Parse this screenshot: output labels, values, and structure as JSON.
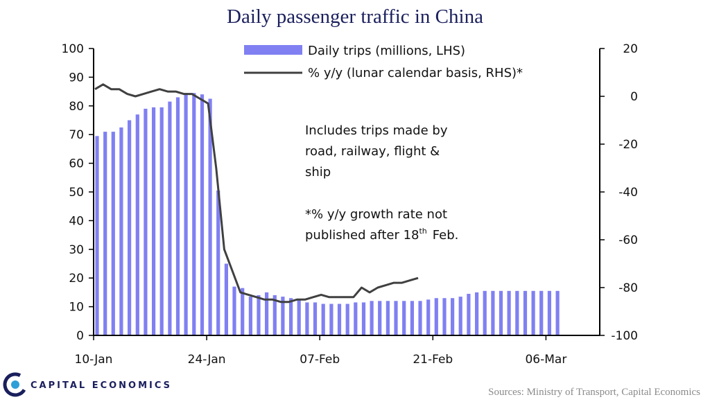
{
  "chart_data": {
    "type": "bar",
    "title": "Daily passenger traffic in China",
    "x_tick_labels": [
      "10-Jan",
      "24-Jan",
      "07-Feb",
      "21-Feb",
      "06-Mar"
    ],
    "y_left": {
      "ylim": [
        0,
        100
      ],
      "ticks": [
        "0",
        "10",
        "20",
        "30",
        "40",
        "50",
        "60",
        "70",
        "80",
        "90",
        "100"
      ]
    },
    "y_right": {
      "ylim": [
        -100,
        20
      ],
      "ticks": [
        "20",
        "0",
        "-20",
        "-40",
        "-60",
        "-80",
        "-100"
      ]
    },
    "grid": false,
    "legend_placement": "top-center",
    "series": [
      {
        "name": "Daily trips (millions, LHS)",
        "kind": "bar",
        "axis": "left",
        "color": "#8080f2",
        "x_day": [
          0,
          1,
          2,
          3,
          4,
          5,
          6,
          7,
          8,
          9,
          10,
          11,
          12,
          13,
          14,
          15,
          16,
          17,
          18,
          19,
          20,
          21,
          22,
          23,
          24,
          25,
          26,
          27,
          28,
          29,
          30,
          31,
          32,
          33,
          34,
          35,
          36,
          37,
          38,
          39,
          40,
          41,
          42,
          43,
          44,
          45,
          46,
          47,
          48,
          49,
          50,
          51,
          52,
          53,
          54,
          55,
          56,
          57
        ],
        "values": [
          69.5,
          71.0,
          71.0,
          72.5,
          75.0,
          77.0,
          79.0,
          79.5,
          79.5,
          81.5,
          83.0,
          84.5,
          84.5,
          84.0,
          82.5,
          50.5,
          25.0,
          17.0,
          16.5,
          13.5,
          14.0,
          15.0,
          14.0,
          13.5,
          13.0,
          12.5,
          11.5,
          11.5,
          11.0,
          11.0,
          11.0,
          11.0,
          11.5,
          11.5,
          12.0,
          12.0,
          12.0,
          12.0,
          12.0,
          12.0,
          12.0,
          12.5,
          13.0,
          13.0,
          13.0,
          13.5,
          14.5,
          15.0,
          15.5,
          15.5,
          15.5,
          15.5,
          15.5,
          15.5,
          15.5,
          15.5,
          15.5,
          15.5
        ]
      },
      {
        "name": "% y/y (lunar calendar basis, RHS)*",
        "kind": "line",
        "axis": "right",
        "color": "#404040",
        "x_day": [
          0,
          1,
          2,
          3,
          4,
          5,
          6,
          7,
          8,
          9,
          10,
          11,
          12,
          13,
          14,
          15,
          16,
          17,
          18,
          19,
          20,
          21,
          22,
          23,
          24,
          25,
          26,
          27,
          28,
          29,
          30,
          31,
          32,
          33,
          34,
          35,
          36,
          37,
          38,
          39,
          40
        ],
        "values": [
          3,
          5,
          3,
          3,
          1,
          0,
          1,
          2,
          3,
          2,
          2,
          1,
          1,
          -1,
          -3,
          -30,
          -64,
          -73,
          -82,
          -83,
          -84,
          -85,
          -85,
          -86,
          -86,
          -85,
          -85,
          -84,
          -83,
          -84,
          -84,
          -84,
          -84,
          -80,
          -82,
          -80,
          -79,
          -78,
          -78,
          -77,
          -76
        ]
      }
    ],
    "annotations": [
      [
        "Includes  trips  made by",
        "road,  railway,  flight  &",
        "ship"
      ],
      [
        "*% y/y growth  rate not",
        "published   after 18"
      ]
    ],
    "annotation_superscript": "th",
    "annotation_tail": "Feb."
  },
  "footer": {
    "brand": "CAPITAL ECONOMICS",
    "source": "Sources: Ministry of Transport, Capital Economics"
  },
  "colors": {
    "title": "#1a1f5c",
    "bar": "#8080f2",
    "line": "#404040",
    "axis": "#000000"
  }
}
